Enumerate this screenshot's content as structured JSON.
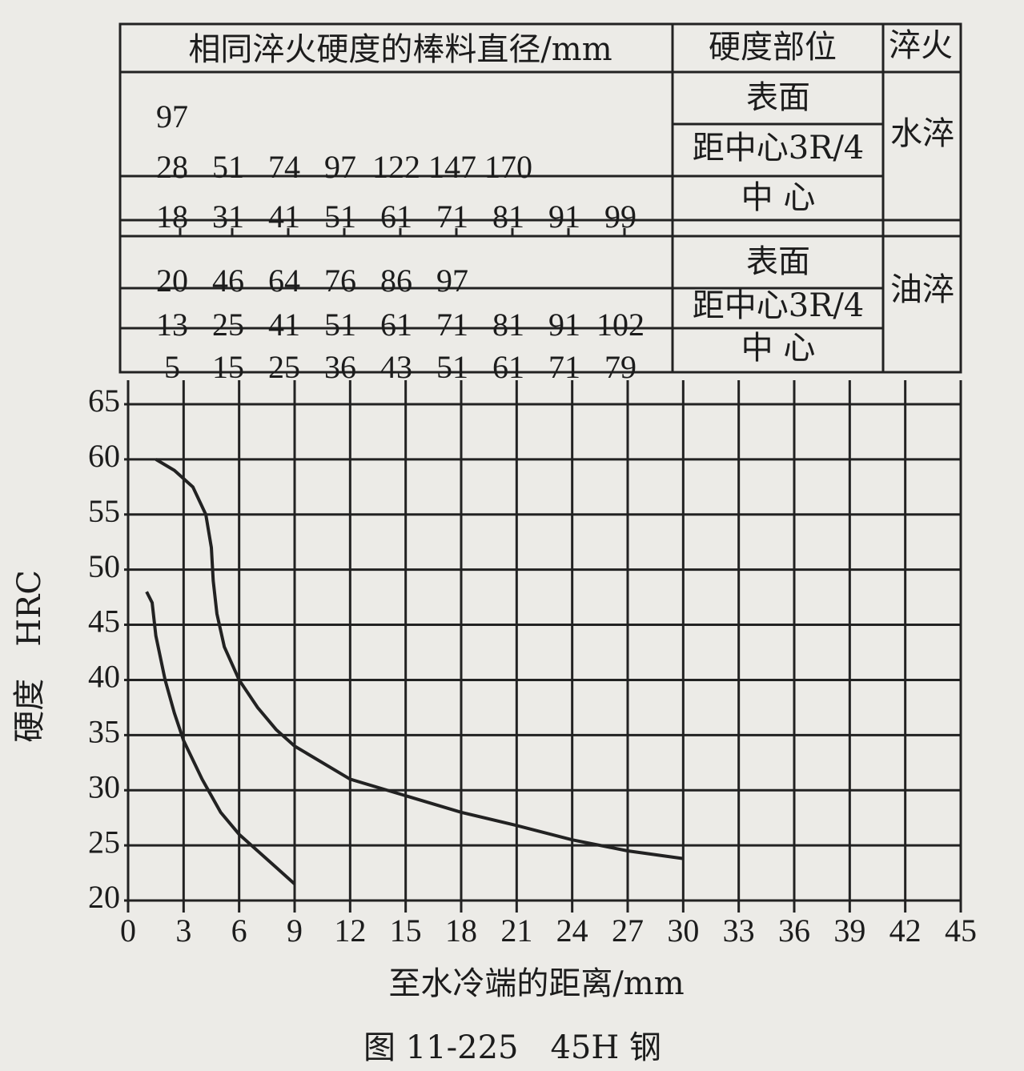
{
  "table": {
    "header": [
      "相同淬火硬度的棒料直径/mm",
      "硬度部位",
      "淬火"
    ],
    "groups": [
      {
        "name": "水淬",
        "rows": [
          {
            "position": "表面",
            "diameters": [
              97
            ]
          },
          {
            "position": "距中心3R/4",
            "diameters": [
              28,
              51,
              74,
              97,
              122,
              147,
              170
            ]
          },
          {
            "position": "中 心",
            "diameters": [
              18,
              31,
              41,
              51,
              61,
              71,
              81,
              91,
              99
            ]
          }
        ]
      },
      {
        "name": "油淬",
        "rows": [
          {
            "position": "表面",
            "diameters": [
              20,
              46,
              64,
              76,
              86,
              97
            ]
          },
          {
            "position": "距中心3R/4",
            "diameters": [
              13,
              25,
              41,
              51,
              61,
              71,
              81,
              91,
              102
            ]
          },
          {
            "position": "中 心",
            "diameters": [
              5,
              15,
              25,
              36,
              43,
              51,
              61,
              71,
              79
            ]
          }
        ]
      }
    ]
  },
  "chart_data": {
    "type": "line",
    "title": "图 11-225　45H 钢",
    "x_label": "至水冷端的距离/mm",
    "y_label": "硬度　HRC",
    "xlim": [
      0,
      45
    ],
    "xticks": [
      0,
      3,
      6,
      9,
      12,
      15,
      18,
      21,
      24,
      27,
      30,
      33,
      36,
      39,
      42,
      45
    ],
    "ylim": [
      20,
      65
    ],
    "yticks": [
      20,
      25,
      30,
      35,
      40,
      45,
      50,
      55,
      60,
      65
    ],
    "grid": true,
    "series": [
      {
        "color": "#222222",
        "x": [
          1.5,
          2.5,
          3.5,
          4.2,
          4.5,
          4.6,
          4.8,
          5.2,
          6,
          7,
          8,
          9,
          12,
          15,
          18,
          21,
          24,
          27,
          30
        ],
        "values": [
          60,
          59,
          57.5,
          55,
          52,
          49,
          46,
          43,
          40,
          37.5,
          35.5,
          34,
          31,
          29.5,
          28,
          26.8,
          25.5,
          24.5,
          23.8
        ]
      },
      {
        "color": "#222222",
        "x": [
          1,
          1.3,
          1.5,
          2,
          2.5,
          3,
          4,
          5,
          6,
          7,
          8,
          9
        ],
        "values": [
          48,
          47,
          44,
          40,
          37,
          34.5,
          31,
          28,
          26,
          24.5,
          23,
          21.5
        ]
      }
    ]
  }
}
